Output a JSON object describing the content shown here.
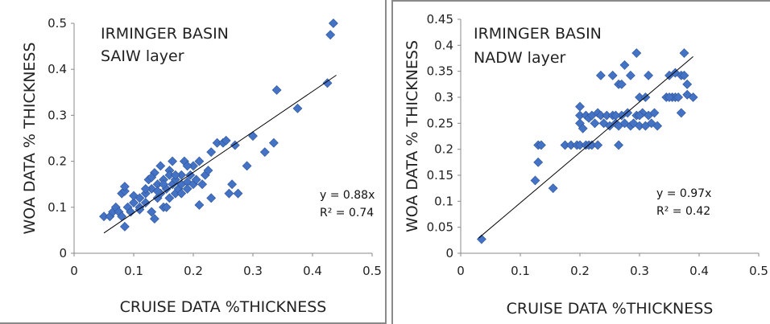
{
  "chart_data": [
    {
      "type": "scatter",
      "annotation_lines": [
        "IRMINGER BASIN",
        "SAIW layer"
      ],
      "xlabel": "CRUISE DATA  %THICKNESS",
      "ylabel": "WOA DATA  % THICKNESS",
      "xlim": [
        0,
        0.5
      ],
      "ylim": [
        0,
        0.5
      ],
      "xticks": [
        "0",
        "0.1",
        "0.2",
        "0.3",
        "0.4",
        "0.5"
      ],
      "yticks": [
        "0",
        "0.1",
        "0.2",
        "0.3",
        "0.4",
        "0.5"
      ],
      "xtick_values": [
        0,
        0.1,
        0.2,
        0.3,
        0.4,
        0.5
      ],
      "ytick_values": [
        0,
        0.1,
        0.2,
        0.3,
        0.4,
        0.5
      ],
      "grid": false,
      "marker_color": "#4472c4",
      "trendline": {
        "slope": 0.88,
        "x_range": [
          0.05,
          0.44
        ],
        "color": "#000000"
      },
      "equation": "y = 0.88x",
      "r_squared": "R² = 0.74",
      "points": [
        [
          0.05,
          0.08
        ],
        [
          0.06,
          0.08
        ],
        [
          0.065,
          0.09
        ],
        [
          0.07,
          0.1
        ],
        [
          0.075,
          0.09
        ],
        [
          0.08,
          0.13
        ],
        [
          0.085,
          0.135
        ],
        [
          0.085,
          0.145
        ],
        [
          0.08,
          0.08
        ],
        [
          0.09,
          0.1
        ],
        [
          0.085,
          0.058
        ],
        [
          0.095,
          0.09
        ],
        [
          0.1,
          0.11
        ],
        [
          0.1,
          0.125
        ],
        [
          0.11,
          0.1
        ],
        [
          0.11,
          0.12
        ],
        [
          0.12,
          0.11
        ],
        [
          0.12,
          0.13
        ],
        [
          0.125,
          0.16
        ],
        [
          0.13,
          0.14
        ],
        [
          0.13,
          0.09
        ],
        [
          0.135,
          0.075
        ],
        [
          0.135,
          0.175
        ],
        [
          0.14,
          0.12
        ],
        [
          0.14,
          0.15
        ],
        [
          0.145,
          0.13
        ],
        [
          0.145,
          0.19
        ],
        [
          0.15,
          0.1
        ],
        [
          0.15,
          0.16
        ],
        [
          0.155,
          0.14
        ],
        [
          0.16,
          0.18
        ],
        [
          0.16,
          0.12
        ],
        [
          0.165,
          0.2
        ],
        [
          0.165,
          0.15
        ],
        [
          0.17,
          0.13
        ],
        [
          0.17,
          0.16
        ],
        [
          0.175,
          0.14
        ],
        [
          0.18,
          0.17
        ],
        [
          0.18,
          0.15
        ],
        [
          0.185,
          0.2
        ],
        [
          0.19,
          0.155
        ],
        [
          0.19,
          0.14
        ],
        [
          0.195,
          0.17
        ],
        [
          0.2,
          0.15
        ],
        [
          0.2,
          0.19
        ],
        [
          0.205,
          0.16
        ],
        [
          0.21,
          0.2
        ],
        [
          0.21,
          0.105
        ],
        [
          0.215,
          0.15
        ],
        [
          0.22,
          0.17
        ],
        [
          0.225,
          0.18
        ],
        [
          0.23,
          0.12
        ],
        [
          0.23,
          0.22
        ],
        [
          0.24,
          0.24
        ],
        [
          0.25,
          0.24
        ],
        [
          0.255,
          0.245
        ],
        [
          0.26,
          0.13
        ],
        [
          0.265,
          0.15
        ],
        [
          0.275,
          0.13
        ],
        [
          0.27,
          0.235
        ],
        [
          0.29,
          0.19
        ],
        [
          0.3,
          0.255
        ],
        [
          0.32,
          0.22
        ],
        [
          0.335,
          0.24
        ],
        [
          0.34,
          0.355
        ],
        [
          0.375,
          0.315
        ],
        [
          0.425,
          0.37
        ],
        [
          0.43,
          0.475
        ],
        [
          0.435,
          0.5
        ],
        [
          0.11,
          0.095
        ],
        [
          0.12,
          0.14
        ],
        [
          0.13,
          0.165
        ],
        [
          0.14,
          0.135
        ],
        [
          0.15,
          0.15
        ],
        [
          0.155,
          0.1
        ],
        [
          0.16,
          0.17
        ],
        [
          0.17,
          0.17
        ],
        [
          0.18,
          0.13
        ],
        [
          0.19,
          0.19
        ]
      ]
    },
    {
      "type": "scatter",
      "annotation_lines": [
        "IRMINGER BASIN",
        "NADW layer"
      ],
      "xlabel": "CRUISE DATA  %THICKNESS",
      "ylabel": "WOA DATA % THICKNESS",
      "xlim": [
        0,
        0.5
      ],
      "ylim": [
        0,
        0.45
      ],
      "xticks": [
        "0",
        "0.1",
        "0.2",
        "0.3",
        "0.4",
        "0.5"
      ],
      "yticks": [
        "0",
        "0.05",
        "0.1",
        "0.15",
        "0.2",
        "0.25",
        "0.3",
        "0.35",
        "0.4",
        "0.45"
      ],
      "xtick_values": [
        0,
        0.1,
        0.2,
        0.3,
        0.4,
        0.5
      ],
      "ytick_values": [
        0,
        0.05,
        0.1,
        0.15,
        0.2,
        0.25,
        0.3,
        0.35,
        0.4,
        0.45
      ],
      "grid": false,
      "marker_color": "#4472c4",
      "trendline": {
        "slope": 0.97,
        "x_range": [
          0.03,
          0.39
        ],
        "color": "#000000"
      },
      "equation": "y = 0.97x",
      "r_squared": "R² = 0.42",
      "points": [
        [
          0.035,
          0.027
        ],
        [
          0.125,
          0.14
        ],
        [
          0.13,
          0.175
        ],
        [
          0.13,
          0.208
        ],
        [
          0.135,
          0.208
        ],
        [
          0.155,
          0.125
        ],
        [
          0.175,
          0.208
        ],
        [
          0.185,
          0.208
        ],
        [
          0.195,
          0.208
        ],
        [
          0.2,
          0.208
        ],
        [
          0.21,
          0.208
        ],
        [
          0.215,
          0.208
        ],
        [
          0.22,
          0.208
        ],
        [
          0.23,
          0.208
        ],
        [
          0.265,
          0.208
        ],
        [
          0.2,
          0.25
        ],
        [
          0.2,
          0.265
        ],
        [
          0.2,
          0.282
        ],
        [
          0.205,
          0.24
        ],
        [
          0.21,
          0.265
        ],
        [
          0.215,
          0.26
        ],
        [
          0.22,
          0.265
        ],
        [
          0.225,
          0.25
        ],
        [
          0.23,
          0.27
        ],
        [
          0.235,
          0.265
        ],
        [
          0.24,
          0.25
        ],
        [
          0.245,
          0.265
        ],
        [
          0.25,
          0.245
        ],
        [
          0.255,
          0.265
        ],
        [
          0.26,
          0.25
        ],
        [
          0.265,
          0.245
        ],
        [
          0.27,
          0.265
        ],
        [
          0.275,
          0.25
        ],
        [
          0.28,
          0.27
        ],
        [
          0.285,
          0.245
        ],
        [
          0.29,
          0.25
        ],
        [
          0.295,
          0.265
        ],
        [
          0.3,
          0.245
        ],
        [
          0.305,
          0.27
        ],
        [
          0.31,
          0.245
        ],
        [
          0.315,
          0.265
        ],
        [
          0.32,
          0.25
        ],
        [
          0.325,
          0.27
        ],
        [
          0.33,
          0.245
        ],
        [
          0.235,
          0.342
        ],
        [
          0.255,
          0.342
        ],
        [
          0.265,
          0.325
        ],
        [
          0.27,
          0.325
        ],
        [
          0.275,
          0.362
        ],
        [
          0.285,
          0.342
        ],
        [
          0.295,
          0.385
        ],
        [
          0.3,
          0.3
        ],
        [
          0.31,
          0.3
        ],
        [
          0.315,
          0.342
        ],
        [
          0.345,
          0.3
        ],
        [
          0.35,
          0.342
        ],
        [
          0.355,
          0.3
        ],
        [
          0.36,
          0.347
        ],
        [
          0.36,
          0.3
        ],
        [
          0.365,
          0.3
        ],
        [
          0.37,
          0.342
        ],
        [
          0.37,
          0.27
        ],
        [
          0.375,
          0.342
        ],
        [
          0.375,
          0.385
        ],
        [
          0.38,
          0.325
        ],
        [
          0.38,
          0.305
        ],
        [
          0.39,
          0.3
        ],
        [
          0.35,
          0.3
        ],
        [
          0.3,
          0.265
        ],
        [
          0.26,
          0.265
        ]
      ]
    }
  ]
}
